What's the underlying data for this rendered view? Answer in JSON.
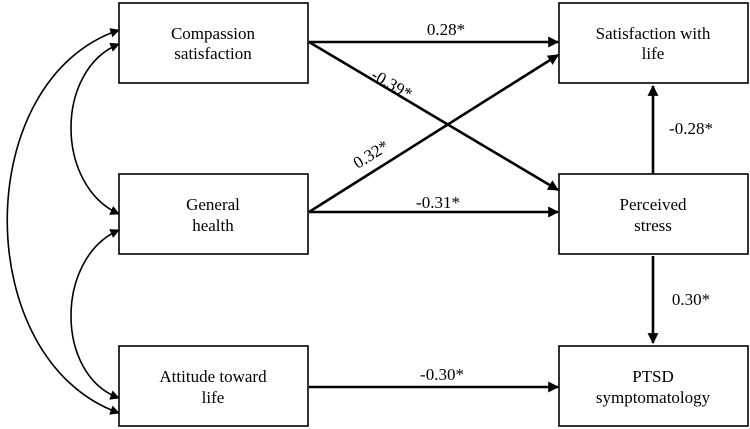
{
  "nodes": {
    "compassion": {
      "lines": [
        "Compassion",
        "satisfaction"
      ]
    },
    "health": {
      "lines": [
        "General",
        "health"
      ]
    },
    "attitude": {
      "lines": [
        "Attitude toward",
        "life"
      ]
    },
    "satisfaction": {
      "lines": [
        "Satisfaction with",
        "life"
      ]
    },
    "stress": {
      "lines": [
        "Perceived",
        "stress"
      ]
    },
    "ptsd": {
      "lines": [
        "PTSD",
        "symptomatology"
      ]
    }
  },
  "paths": {
    "compassion_to_satisfaction": "0.28*",
    "compassion_to_stress": "-0.39*",
    "health_to_satisfaction": "0.32*",
    "health_to_stress": "-0.31*",
    "stress_to_satisfaction": "-0.28*",
    "stress_to_ptsd": "0.30*",
    "attitude_to_ptsd": "-0.30*"
  }
}
